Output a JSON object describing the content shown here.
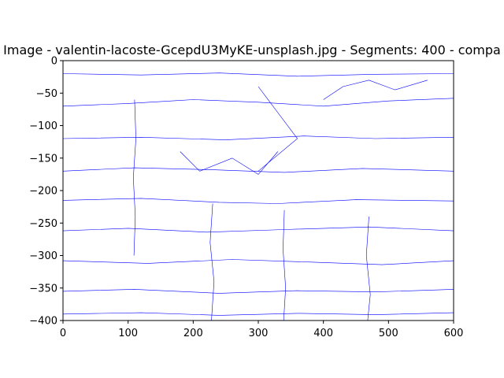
{
  "chart_data": {
    "type": "line",
    "title": "Image - valentin-lacoste-GcepdU3MyKE-unsplash.jpg - Segments: 400 - compa",
    "xlabel": "",
    "ylabel": "",
    "xlim": [
      0,
      600
    ],
    "ylim": [
      -400,
      0
    ],
    "x_ticks": [
      0,
      100,
      200,
      300,
      400,
      500,
      600
    ],
    "y_ticks": [
      0,
      -50,
      -100,
      -150,
      -200,
      -250,
      -300,
      -350,
      -400
    ],
    "x_tick_labels": [
      "0",
      "100",
      "200",
      "300",
      "400",
      "500",
      "600"
    ],
    "y_tick_labels": [
      "0",
      "−50",
      "−100",
      "−150",
      "−200",
      "−250",
      "−300",
      "−350",
      "−400"
    ],
    "grid": false,
    "line_color": "#0000ff",
    "series": [
      {
        "x": [
          0,
          120,
          240,
          360,
          480,
          600
        ],
        "y": [
          -20,
          -22,
          -19,
          -24,
          -21,
          -20
        ]
      },
      {
        "x": [
          0,
          100,
          200,
          300,
          400,
          500,
          600
        ],
        "y": [
          -70,
          -66,
          -60,
          -64,
          -70,
          -62,
          -58
        ]
      },
      {
        "x": [
          0,
          120,
          250,
          370,
          480,
          600
        ],
        "y": [
          -120,
          -118,
          -122,
          -116,
          -120,
          -118
        ]
      },
      {
        "x": [
          0,
          110,
          230,
          340,
          460,
          600
        ],
        "y": [
          -170,
          -165,
          -168,
          -172,
          -166,
          -170
        ]
      },
      {
        "x": [
          0,
          120,
          240,
          330,
          450,
          600
        ],
        "y": [
          -215,
          -212,
          -218,
          -220,
          -214,
          -216
        ]
      },
      {
        "x": [
          0,
          100,
          220,
          340,
          470,
          600
        ],
        "y": [
          -262,
          -258,
          -264,
          -260,
          -256,
          -262
        ]
      },
      {
        "x": [
          0,
          130,
          260,
          380,
          490,
          600
        ],
        "y": [
          -308,
          -312,
          -306,
          -310,
          -314,
          -308
        ]
      },
      {
        "x": [
          0,
          110,
          240,
          360,
          480,
          600
        ],
        "y": [
          -355,
          -352,
          -358,
          -354,
          -356,
          -352
        ]
      },
      {
        "x": [
          0,
          120,
          240,
          360,
          480,
          600
        ],
        "y": [
          -390,
          -388,
          -392,
          -389,
          -391,
          -388
        ]
      },
      {
        "x": [
          110,
          112,
          108,
          111,
          109
        ],
        "y": [
          -60,
          -120,
          -180,
          -240,
          -300
        ]
      },
      {
        "x": [
          230,
          226,
          232,
          228
        ],
        "y": [
          -220,
          -280,
          -340,
          -400
        ]
      },
      {
        "x": [
          340,
          338,
          342,
          339
        ],
        "y": [
          -230,
          -290,
          -350,
          -400
        ]
      },
      {
        "x": [
          470,
          466,
          472,
          468
        ],
        "y": [
          -240,
          -300,
          -360,
          -400
        ]
      },
      {
        "x": [
          300,
          330,
          360,
          300
        ],
        "y": [
          -40,
          -80,
          -120,
          -170
        ]
      },
      {
        "x": [
          400,
          430,
          470,
          510,
          560
        ],
        "y": [
          -60,
          -40,
          -30,
          -45,
          -30
        ]
      },
      {
        "x": [
          180,
          210,
          260,
          300,
          330
        ],
        "y": [
          -140,
          -170,
          -150,
          -175,
          -140
        ]
      }
    ]
  }
}
